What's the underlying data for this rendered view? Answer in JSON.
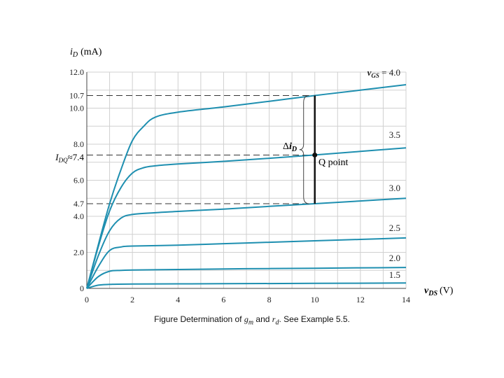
{
  "chart_data": {
    "type": "line",
    "xlabel_var": "v",
    "xlabel_sub": "DS",
    "xlabel_unit": "(V)",
    "ylabel_var": "i",
    "ylabel_sub": "D",
    "ylabel_unit": "(mA)",
    "xlim": [
      0,
      14
    ],
    "ylim": [
      0,
      12
    ],
    "x_ticks": [
      "0",
      "2",
      "4",
      "6",
      "8",
      "10",
      "12",
      "14"
    ],
    "y_ticks": [
      {
        "value": 0,
        "label": "0"
      },
      {
        "value": 2,
        "label": "2.0"
      },
      {
        "value": 4,
        "label": "4.0"
      },
      {
        "value": 4.7,
        "label": "4.7"
      },
      {
        "value": 6,
        "label": "6.0"
      },
      {
        "value": 8,
        "label": "8.0"
      },
      {
        "value": 10,
        "label": "10.0"
      },
      {
        "value": 10.7,
        "label": "10.7"
      },
      {
        "value": 12,
        "label": "12.0"
      }
    ],
    "idq_var": "I",
    "idq_sub": "DQ",
    "idq_value_label": "≈7.4",
    "idq_value": 7.4,
    "series": [
      {
        "label_var": "v",
        "label_sub": "GS",
        "label_value": " = 4.0",
        "vgs": 4.0,
        "points": [
          [
            0,
            0
          ],
          [
            0.5,
            2.4
          ],
          [
            1,
            4.7
          ],
          [
            1.5,
            6.6
          ],
          [
            2,
            8.2
          ],
          [
            2.5,
            9.0
          ],
          [
            3,
            9.5
          ],
          [
            4,
            9.78
          ],
          [
            6,
            10.07
          ],
          [
            8,
            10.38
          ],
          [
            10,
            10.7
          ],
          [
            12,
            11.0
          ],
          [
            14,
            11.3
          ]
        ]
      },
      {
        "label_value": "3.5",
        "vgs": 3.5,
        "points": [
          [
            0,
            0
          ],
          [
            0.5,
            2.3
          ],
          [
            1,
            4.3
          ],
          [
            1.5,
            5.6
          ],
          [
            2,
            6.4
          ],
          [
            2.5,
            6.7
          ],
          [
            3,
            6.8
          ],
          [
            4,
            6.9
          ],
          [
            6,
            7.05
          ],
          [
            8,
            7.22
          ],
          [
            10,
            7.4
          ],
          [
            12,
            7.6
          ],
          [
            14,
            7.8
          ]
        ]
      },
      {
        "label_value": "3.0",
        "vgs": 3.0,
        "points": [
          [
            0,
            0
          ],
          [
            0.5,
            1.8
          ],
          [
            1,
            3.2
          ],
          [
            1.5,
            3.9
          ],
          [
            2,
            4.1
          ],
          [
            3,
            4.2
          ],
          [
            4,
            4.27
          ],
          [
            6,
            4.4
          ],
          [
            8,
            4.55
          ],
          [
            10,
            4.7
          ],
          [
            12,
            4.85
          ],
          [
            14,
            5.0
          ]
        ]
      },
      {
        "label_value": "2.5",
        "vgs": 2.5,
        "points": [
          [
            0,
            0
          ],
          [
            0.5,
            1.2
          ],
          [
            1,
            2.1
          ],
          [
            1.5,
            2.3
          ],
          [
            2,
            2.35
          ],
          [
            4,
            2.4
          ],
          [
            6,
            2.48
          ],
          [
            8,
            2.56
          ],
          [
            10,
            2.64
          ],
          [
            12,
            2.72
          ],
          [
            14,
            2.8
          ]
        ]
      },
      {
        "label_value": "2.0",
        "vgs": 2.0,
        "points": [
          [
            0,
            0
          ],
          [
            0.5,
            0.65
          ],
          [
            1,
            0.95
          ],
          [
            1.5,
            1.0
          ],
          [
            2,
            1.02
          ],
          [
            4,
            1.05
          ],
          [
            6,
            1.08
          ],
          [
            8,
            1.1
          ],
          [
            10,
            1.12
          ],
          [
            12,
            1.14
          ],
          [
            14,
            1.16
          ]
        ]
      },
      {
        "label_value": "1.5",
        "vgs": 1.5,
        "points": [
          [
            0,
            0
          ],
          [
            0.5,
            0.18
          ],
          [
            1,
            0.22
          ],
          [
            2,
            0.24
          ],
          [
            6,
            0.26
          ],
          [
            10,
            0.28
          ],
          [
            14,
            0.3
          ]
        ]
      }
    ],
    "q_point": {
      "x": 10,
      "y": 7.4,
      "label": "Q point"
    },
    "delta_label_prefix": "Δ",
    "delta_label_var": "i",
    "delta_label_sub": "D",
    "delta_range": [
      4.7,
      10.7
    ],
    "grid": true,
    "curve_color": "#1e8fb0"
  },
  "caption": {
    "prefix": "Figure Determination of ",
    "gm_var": "g",
    "gm_sub": "m",
    "and_text": " and ",
    "rd_var": "r",
    "rd_sub": "d",
    "suffix": ". See Example 5.5."
  }
}
